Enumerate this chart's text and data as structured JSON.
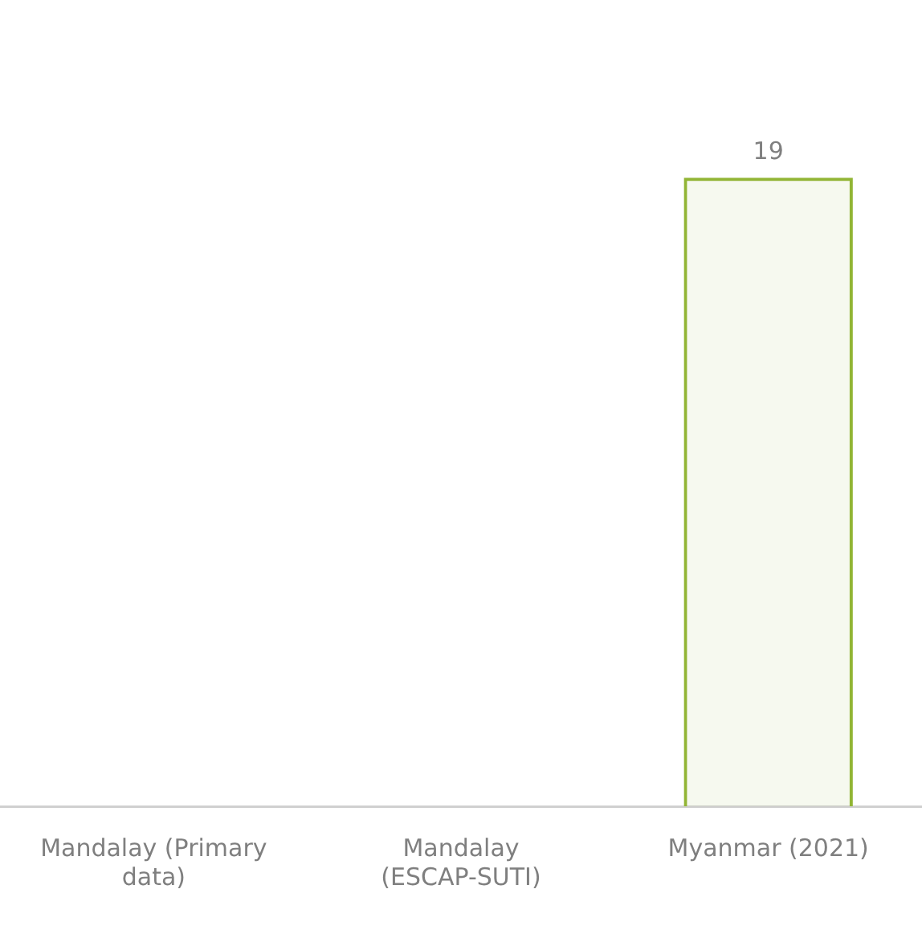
{
  "chart_data": {
    "type": "bar",
    "categories": [
      "Mandalay (Primary data)",
      "Mandalay (ESCAP-SUTI)",
      "Myanmar (2021)"
    ],
    "series": [
      {
        "color": "#92b535",
        "values": [
          null,
          null,
          19
        ]
      }
    ],
    "data_labels": true,
    "grid": false,
    "legend": false,
    "tick_labels": "x"
  }
}
